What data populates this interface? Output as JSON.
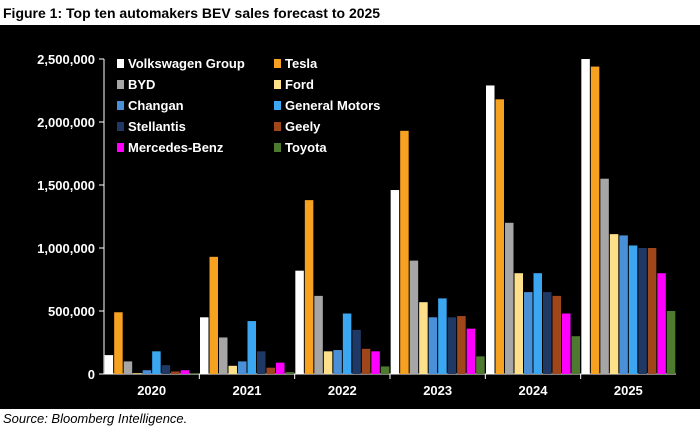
{
  "figure": {
    "title": "Figure 1: Top ten automakers BEV sales forecast to 2025",
    "source": "Source: Bloomberg Intelligence."
  },
  "chart_data": {
    "type": "bar",
    "title": "Top ten automakers BEV sales forecast to 2025",
    "xlabel": "",
    "ylabel": "",
    "ylim": [
      0,
      2500000
    ],
    "yticks": [
      0,
      500000,
      1000000,
      1500000,
      2000000,
      2500000
    ],
    "ytick_labels": [
      "0",
      "500,000",
      "1,000,000",
      "1,500,000",
      "2,000,000",
      "2,500,000"
    ],
    "grid": false,
    "legend_position": "top-left",
    "categories": [
      "2020",
      "2021",
      "2022",
      "2023",
      "2024",
      "2025"
    ],
    "series": [
      {
        "name": "Volkswagen Group",
        "color": "#ffffff",
        "values": [
          150000,
          450000,
          820000,
          1460000,
          2290000,
          2500000
        ]
      },
      {
        "name": "Tesla",
        "color": "#f6a11f",
        "values": [
          490000,
          930000,
          1380000,
          1930000,
          2180000,
          2440000
        ]
      },
      {
        "name": "BYD",
        "color": "#a6a6a6",
        "values": [
          100000,
          290000,
          620000,
          900000,
          1200000,
          1550000
        ]
      },
      {
        "name": "Ford",
        "color": "#ffe08a",
        "values": [
          5000,
          65000,
          180000,
          570000,
          800000,
          1110000
        ]
      },
      {
        "name": "Changan",
        "color": "#4a90d9",
        "values": [
          30000,
          100000,
          190000,
          450000,
          650000,
          1100000
        ]
      },
      {
        "name": "General Motors",
        "color": "#3ba7f2",
        "values": [
          180000,
          420000,
          480000,
          600000,
          800000,
          1020000
        ]
      },
      {
        "name": "Stellantis",
        "color": "#1f3864",
        "values": [
          70000,
          180000,
          350000,
          450000,
          650000,
          1000000
        ]
      },
      {
        "name": "Geely",
        "color": "#a0461b",
        "values": [
          20000,
          50000,
          200000,
          460000,
          620000,
          1000000
        ]
      },
      {
        "name": "Mercedes-Benz",
        "color": "#ff00ff",
        "values": [
          30000,
          90000,
          180000,
          360000,
          480000,
          800000
        ]
      },
      {
        "name": "Toyota",
        "color": "#4e7a2f",
        "values": [
          3000,
          15000,
          60000,
          140000,
          300000,
          500000
        ]
      }
    ]
  }
}
